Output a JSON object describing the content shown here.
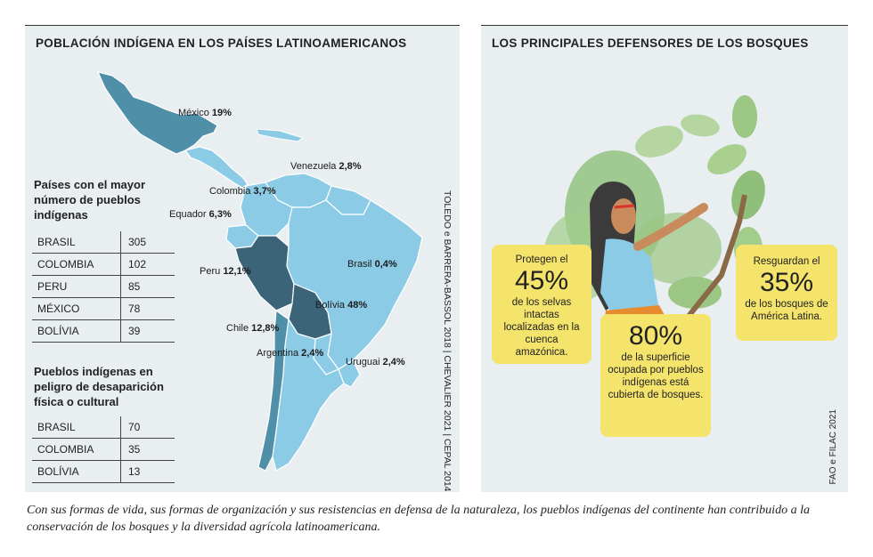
{
  "left_panel": {
    "title": "POBLACIÓN INDÍGENA EN LOS PAÍSES LATINOAMERICANOS",
    "map_labels": [
      {
        "country": "México",
        "value": "19%"
      },
      {
        "country": "Venezuela",
        "value": "2,8%"
      },
      {
        "country": "Colombia",
        "value": "3,7%"
      },
      {
        "country": "Equador",
        "value": "6,3%"
      },
      {
        "country": "Brasil",
        "value": "0,4%"
      },
      {
        "country": "Peru",
        "value": "12,1%"
      },
      {
        "country": "Bolívia",
        "value": "48%"
      },
      {
        "country": "Chile",
        "value": "12,8%"
      },
      {
        "country": "Argentina",
        "value": "2,4%"
      },
      {
        "country": "Uruguai",
        "value": "2,4%"
      }
    ],
    "table1": {
      "title": "Países con el mayor número de pueblos indígenas",
      "rows": [
        {
          "name": "BRASIL",
          "value": "305"
        },
        {
          "name": "COLOMBIA",
          "value": "102"
        },
        {
          "name": "PERU",
          "value": "85"
        },
        {
          "name": "MÉXICO",
          "value": "78"
        },
        {
          "name": "BOLÍVIA",
          "value": "39"
        }
      ]
    },
    "table2": {
      "title": "Pueblos indígenas en peligro de desaparición física o cultural",
      "rows": [
        {
          "name": "BRASIL",
          "value": "70"
        },
        {
          "name": "COLOMBIA",
          "value": "35"
        },
        {
          "name": "BOLÍVIA",
          "value": "13"
        }
      ]
    },
    "source": "TOLEDO e BARRERA-BASSOL 2018 | CHEVALIER 2021 | CEPAL 2014"
  },
  "right_panel": {
    "title": "LOS PRINCIPALES DEFENSORES DE LOS BOSQUES",
    "boxes": [
      {
        "pre": "Protegen el",
        "big": "45%",
        "post": "de los selvas intactas localizadas en la cuenca amazónica."
      },
      {
        "pre": "",
        "big": "80%",
        "post": "de la superficie ocupada por pueblos indígenas está cubierta de bosques."
      },
      {
        "pre": "Resguardan el",
        "big": "35%",
        "post": "de los bosques de América Latina."
      }
    ],
    "source": "FAO e FILAC 2021"
  },
  "caption": "Con sus formas de vida, sus formas de organización y sus resistencias en defensa de la naturaleza, los pueblos indígenas del continente han contribuido a la conservación de los bosques y la diversidad agrícola latinoamericana.",
  "colors": {
    "panel_bg": "#e9eef1",
    "map_light": "#8ccbe6",
    "map_mid": "#4f8fa8",
    "map_dark": "#3c6478",
    "highlight_box": "#f4e46c",
    "leaf_green": "#8fbf7a"
  }
}
